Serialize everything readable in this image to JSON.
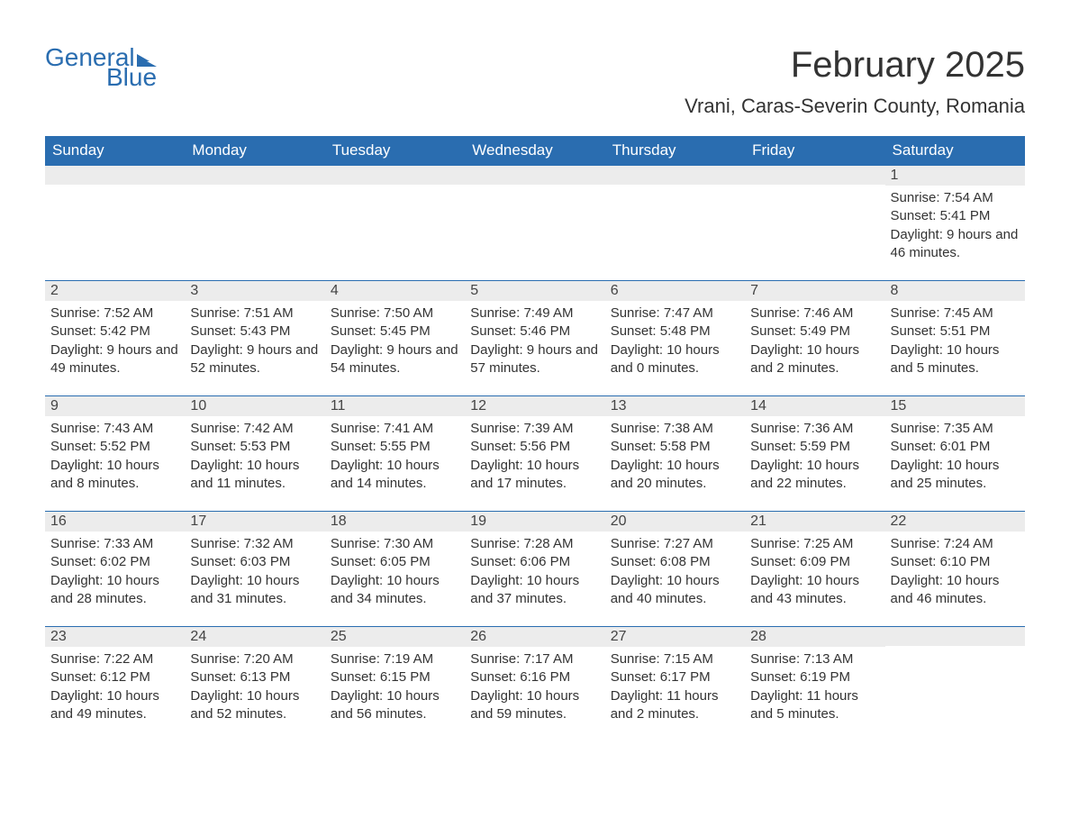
{
  "logo": {
    "text1": "General",
    "text2": "Blue",
    "flag_color": "#2a6db0"
  },
  "title": "February 2025",
  "location": "Vrani, Caras-Severin County, Romania",
  "weekdays": [
    "Sunday",
    "Monday",
    "Tuesday",
    "Wednesday",
    "Thursday",
    "Friday",
    "Saturday"
  ],
  "colors": {
    "header_bg": "#2a6db0",
    "header_text": "#ffffff",
    "daynum_bg": "#ececec",
    "daynum_border": "#2a6db0",
    "text": "#333333",
    "background": "#ffffff"
  },
  "weeks": [
    [
      null,
      null,
      null,
      null,
      null,
      null,
      {
        "num": "1",
        "sunrise": "Sunrise: 7:54 AM",
        "sunset": "Sunset: 5:41 PM",
        "daylight": "Daylight: 9 hours and 46 minutes."
      }
    ],
    [
      {
        "num": "2",
        "sunrise": "Sunrise: 7:52 AM",
        "sunset": "Sunset: 5:42 PM",
        "daylight": "Daylight: 9 hours and 49 minutes."
      },
      {
        "num": "3",
        "sunrise": "Sunrise: 7:51 AM",
        "sunset": "Sunset: 5:43 PM",
        "daylight": "Daylight: 9 hours and 52 minutes."
      },
      {
        "num": "4",
        "sunrise": "Sunrise: 7:50 AM",
        "sunset": "Sunset: 5:45 PM",
        "daylight": "Daylight: 9 hours and 54 minutes."
      },
      {
        "num": "5",
        "sunrise": "Sunrise: 7:49 AM",
        "sunset": "Sunset: 5:46 PM",
        "daylight": "Daylight: 9 hours and 57 minutes."
      },
      {
        "num": "6",
        "sunrise": "Sunrise: 7:47 AM",
        "sunset": "Sunset: 5:48 PM",
        "daylight": "Daylight: 10 hours and 0 minutes."
      },
      {
        "num": "7",
        "sunrise": "Sunrise: 7:46 AM",
        "sunset": "Sunset: 5:49 PM",
        "daylight": "Daylight: 10 hours and 2 minutes."
      },
      {
        "num": "8",
        "sunrise": "Sunrise: 7:45 AM",
        "sunset": "Sunset: 5:51 PM",
        "daylight": "Daylight: 10 hours and 5 minutes."
      }
    ],
    [
      {
        "num": "9",
        "sunrise": "Sunrise: 7:43 AM",
        "sunset": "Sunset: 5:52 PM",
        "daylight": "Daylight: 10 hours and 8 minutes."
      },
      {
        "num": "10",
        "sunrise": "Sunrise: 7:42 AM",
        "sunset": "Sunset: 5:53 PM",
        "daylight": "Daylight: 10 hours and 11 minutes."
      },
      {
        "num": "11",
        "sunrise": "Sunrise: 7:41 AM",
        "sunset": "Sunset: 5:55 PM",
        "daylight": "Daylight: 10 hours and 14 minutes."
      },
      {
        "num": "12",
        "sunrise": "Sunrise: 7:39 AM",
        "sunset": "Sunset: 5:56 PM",
        "daylight": "Daylight: 10 hours and 17 minutes."
      },
      {
        "num": "13",
        "sunrise": "Sunrise: 7:38 AM",
        "sunset": "Sunset: 5:58 PM",
        "daylight": "Daylight: 10 hours and 20 minutes."
      },
      {
        "num": "14",
        "sunrise": "Sunrise: 7:36 AM",
        "sunset": "Sunset: 5:59 PM",
        "daylight": "Daylight: 10 hours and 22 minutes."
      },
      {
        "num": "15",
        "sunrise": "Sunrise: 7:35 AM",
        "sunset": "Sunset: 6:01 PM",
        "daylight": "Daylight: 10 hours and 25 minutes."
      }
    ],
    [
      {
        "num": "16",
        "sunrise": "Sunrise: 7:33 AM",
        "sunset": "Sunset: 6:02 PM",
        "daylight": "Daylight: 10 hours and 28 minutes."
      },
      {
        "num": "17",
        "sunrise": "Sunrise: 7:32 AM",
        "sunset": "Sunset: 6:03 PM",
        "daylight": "Daylight: 10 hours and 31 minutes."
      },
      {
        "num": "18",
        "sunrise": "Sunrise: 7:30 AM",
        "sunset": "Sunset: 6:05 PM",
        "daylight": "Daylight: 10 hours and 34 minutes."
      },
      {
        "num": "19",
        "sunrise": "Sunrise: 7:28 AM",
        "sunset": "Sunset: 6:06 PM",
        "daylight": "Daylight: 10 hours and 37 minutes."
      },
      {
        "num": "20",
        "sunrise": "Sunrise: 7:27 AM",
        "sunset": "Sunset: 6:08 PM",
        "daylight": "Daylight: 10 hours and 40 minutes."
      },
      {
        "num": "21",
        "sunrise": "Sunrise: 7:25 AM",
        "sunset": "Sunset: 6:09 PM",
        "daylight": "Daylight: 10 hours and 43 minutes."
      },
      {
        "num": "22",
        "sunrise": "Sunrise: 7:24 AM",
        "sunset": "Sunset: 6:10 PM",
        "daylight": "Daylight: 10 hours and 46 minutes."
      }
    ],
    [
      {
        "num": "23",
        "sunrise": "Sunrise: 7:22 AM",
        "sunset": "Sunset: 6:12 PM",
        "daylight": "Daylight: 10 hours and 49 minutes."
      },
      {
        "num": "24",
        "sunrise": "Sunrise: 7:20 AM",
        "sunset": "Sunset: 6:13 PM",
        "daylight": "Daylight: 10 hours and 52 minutes."
      },
      {
        "num": "25",
        "sunrise": "Sunrise: 7:19 AM",
        "sunset": "Sunset: 6:15 PM",
        "daylight": "Daylight: 10 hours and 56 minutes."
      },
      {
        "num": "26",
        "sunrise": "Sunrise: 7:17 AM",
        "sunset": "Sunset: 6:16 PM",
        "daylight": "Daylight: 10 hours and 59 minutes."
      },
      {
        "num": "27",
        "sunrise": "Sunrise: 7:15 AM",
        "sunset": "Sunset: 6:17 PM",
        "daylight": "Daylight: 11 hours and 2 minutes."
      },
      {
        "num": "28",
        "sunrise": "Sunrise: 7:13 AM",
        "sunset": "Sunset: 6:19 PM",
        "daylight": "Daylight: 11 hours and 5 minutes."
      },
      null
    ]
  ]
}
